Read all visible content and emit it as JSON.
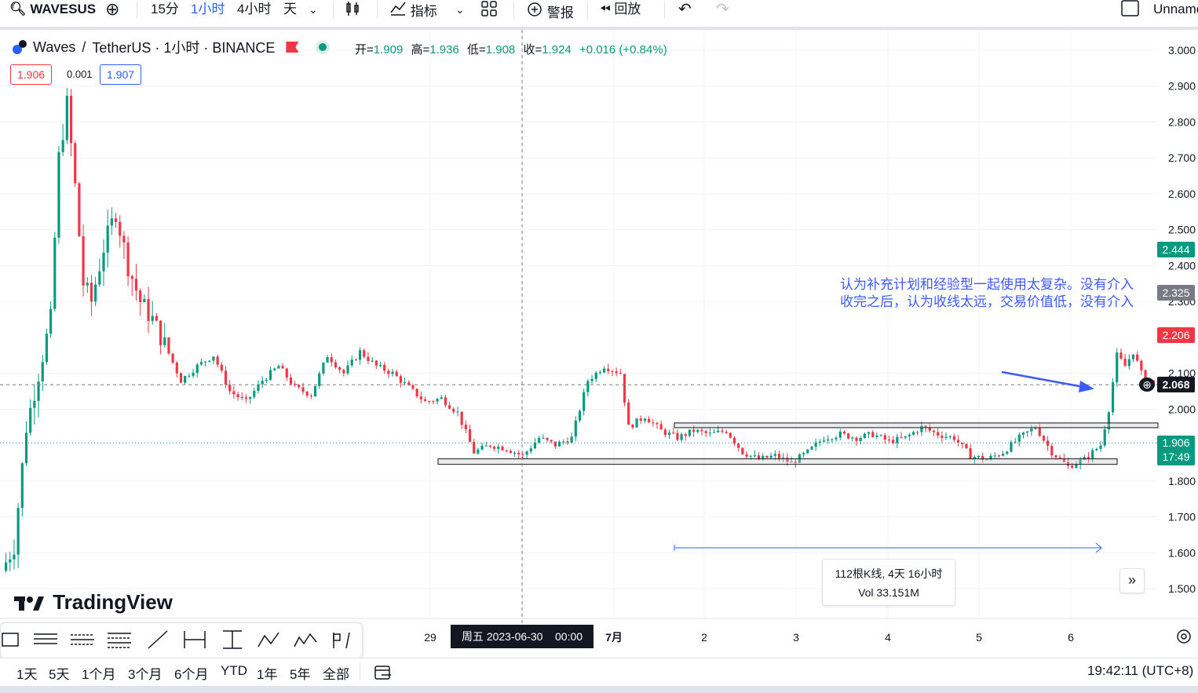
{
  "toolbar": {
    "symbol": "WAVESUS",
    "intervals": [
      "15分",
      "1小时",
      "4小时",
      "天"
    ],
    "active_interval": "1小时",
    "indicators_label": "指标",
    "alert_label": "警报",
    "replay_label": "回放",
    "layout_name": "Unnamed"
  },
  "legend": {
    "symbol_name": "Waves",
    "separator": "/",
    "quote_name": "TetherUS · 1小时 · BINANCE",
    "open_label": "开=",
    "open": "1.909",
    "high_label": "高=",
    "high": "1.936",
    "low_label": "低=",
    "low": "1.908",
    "close_label": "收=",
    "close": "1.924",
    "change": "+0.016 (+0.84%)",
    "bid": "1.906",
    "spread": "0.001",
    "ask": "1.907"
  },
  "annotation": {
    "line1": "认为补充计划和经验型一起使用太复杂。没有介入",
    "line2": "收完之后，认为收线太远，交易价值低，没有介入"
  },
  "measure": {
    "bars_text": "112根K线, 4天 16小时",
    "vol_text": "Vol 33.151M"
  },
  "crosshair_time_label": "周五 2023-06-30    00:00",
  "logo_text": "TradingView",
  "bottom": {
    "ranges": [
      "1天",
      "5天",
      "1个月",
      "3个月",
      "6个月",
      "YTD",
      "1年",
      "5年",
      "全部"
    ],
    "clock": "19:42:11 (UTC+8)"
  },
  "price_tags": {
    "p2444": "2.444",
    "p2325": "2.325",
    "p2206": "2.206",
    "p2068": "2.068",
    "p1906": "1.906",
    "countdown": "17:49"
  },
  "colors": {
    "up": "#089981",
    "down": "#f23645",
    "accent": "#2962ff",
    "annotation": "#3d5afe"
  },
  "chart_data": {
    "type": "candlestick",
    "title": "Waves / TetherUS · 1小时 · BINANCE",
    "ylim": [
      1.45,
      3.05
    ],
    "y_ticks": [
      "3.000",
      "2.900",
      "2.800",
      "2.700",
      "2.600",
      "2.500",
      "2.400",
      "2.300",
      "2.100",
      "2.000",
      "1.800",
      "1.700",
      "1.600",
      "1.500"
    ],
    "x_ticks": [
      "29",
      "7月",
      "2",
      "3",
      "4",
      "5",
      "6"
    ],
    "levels": [
      {
        "name": "support",
        "y": 1.855
      },
      {
        "name": "resistance",
        "y": 1.955
      }
    ],
    "last_price": 1.906,
    "current_price": 2.068,
    "series_summary": [
      {
        "segment": "spike",
        "start": 1.55,
        "high": 2.89,
        "end": 2.2
      },
      {
        "segment": "decline",
        "start": 2.2,
        "low": 1.87,
        "end": 1.9
      },
      {
        "segment": "range",
        "low": 1.81,
        "high": 1.98
      },
      {
        "segment": "breakout",
        "start": 1.86,
        "high": 2.22,
        "end": 2.07
      }
    ]
  }
}
